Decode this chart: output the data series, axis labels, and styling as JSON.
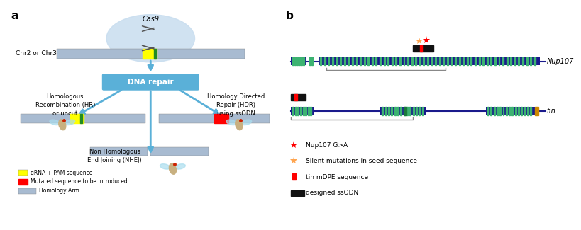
{
  "bg_color": "#ffffff",
  "panel_a_label": "a",
  "panel_b_label": "b",
  "chr_label": "Chr2 or Chr3",
  "cas9_label": "Cas9",
  "dna_repair_label": "DNA repair",
  "hr_label": "Homologous\nRecombination (HR)\nor uncut",
  "hdr_label": "Homology Directed\nRepair (HDR)\nusing ssODN",
  "nhej_label": "Non Homologous\nEnd Joining (NHEJ)",
  "legend_grna": "gRNA + PAM sequence",
  "legend_mut": "Mutated sequence to be introduced",
  "legend_hom": "Homology Arm",
  "nup107_label": "Nup107",
  "tin_label": "tin",
  "legend_red_star": "Nup107 G>A",
  "legend_orange_star": "Silent mutations in seed sequence",
  "legend_tin_mDPE": "tin mDPE sequence",
  "legend_ssODN": "designed ssODN",
  "arm_color": "#a8bbd1",
  "grna_color": "#ffff00",
  "mut_color": "#ff0000",
  "dna_repair_bg": "#5ab0d8",
  "dna_repair_text": "#ffffff",
  "arrow_color": "#5ab0d8",
  "cas9_circle_color": "#c8ddef",
  "gene_dark_color": "#1a1a8c",
  "gene_stripe_color": "#3cb371",
  "ssODN_color": "#111111",
  "tin_mDPE_color": "#ff0000",
  "legend_italic_part": "tin"
}
